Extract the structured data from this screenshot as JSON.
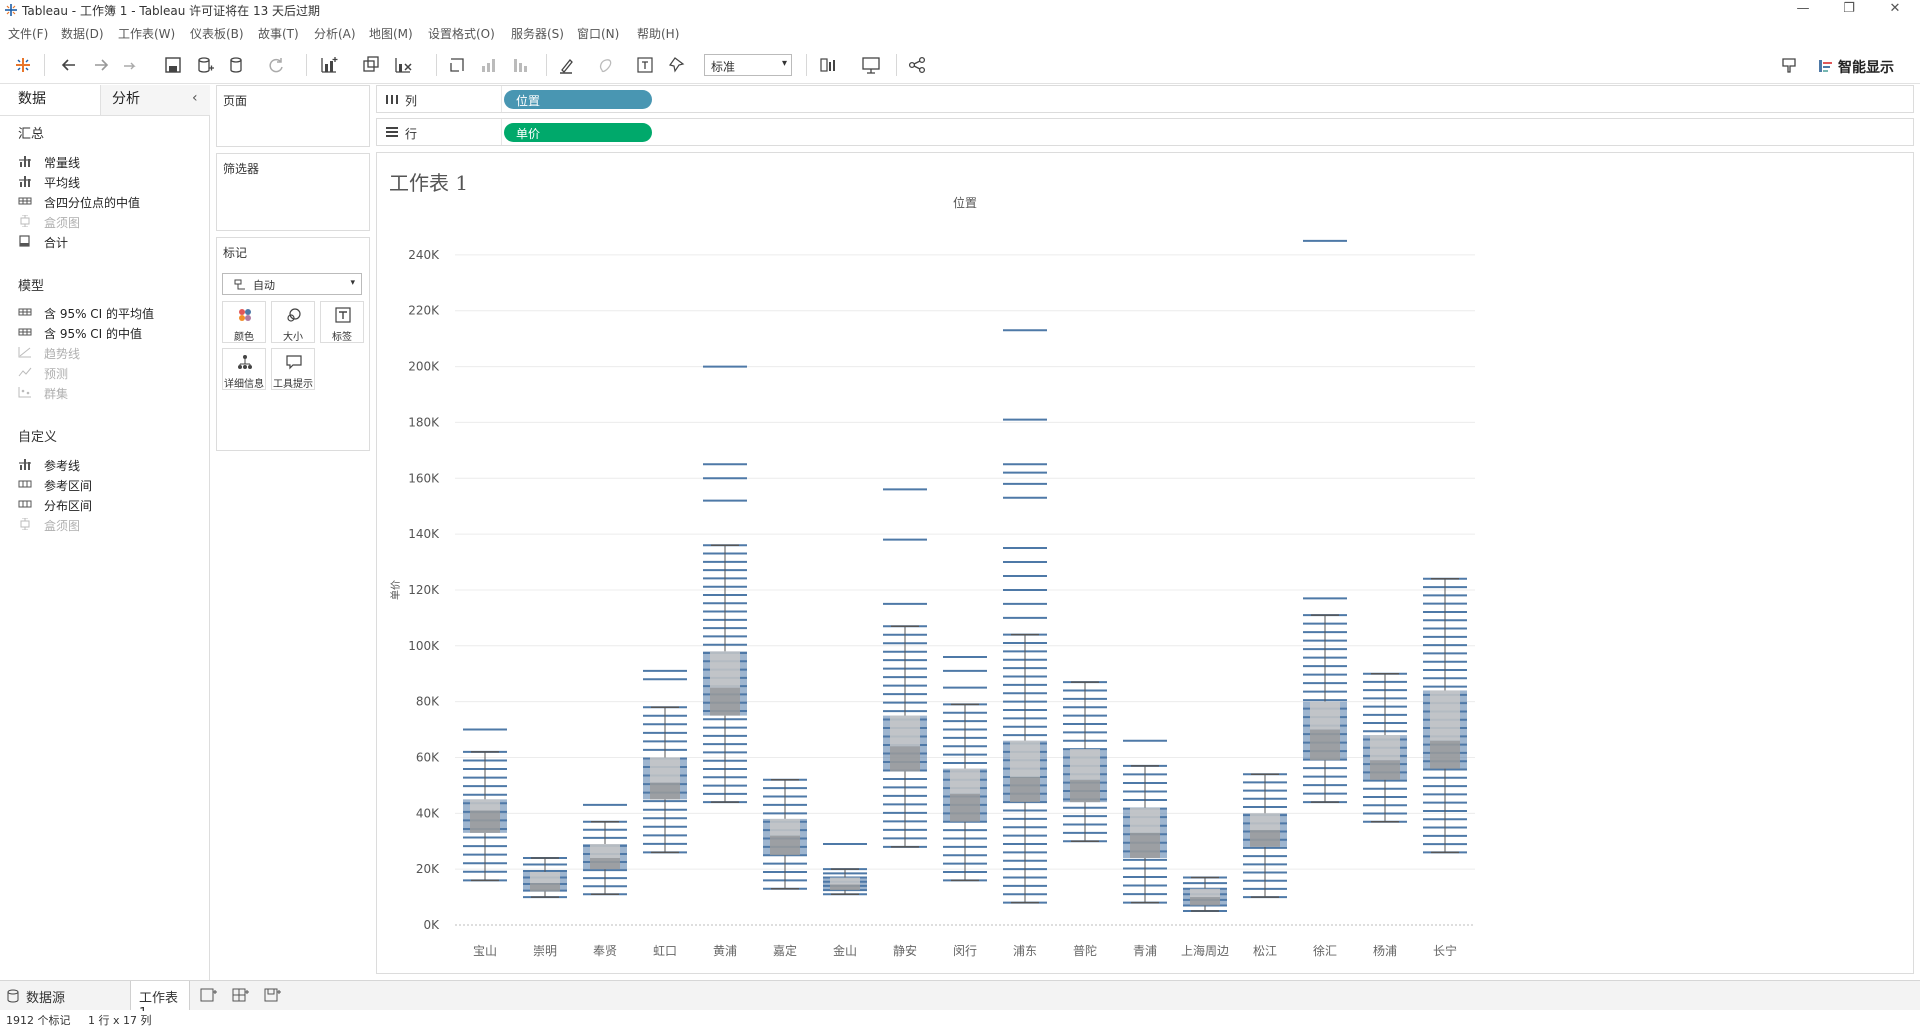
{
  "window": {
    "title": "Tableau - 工作簿 1 - Tableau 许可证将在 13 天后过期",
    "minimize": "—",
    "maximize": "❐",
    "close": "✕"
  },
  "menu": [
    "文件(F)",
    "数据(D)",
    "工作表(W)",
    "仪表板(B)",
    "故事(T)",
    "分析(A)",
    "地图(M)",
    "设置格式(O)",
    "服务器(S)",
    "窗口(N)",
    "帮助(H)"
  ],
  "toolbar": {
    "fit_value": "标准",
    "show_me_label": "智能显示"
  },
  "left_panel": {
    "tab_data": "数据",
    "tab_analysis": "分析",
    "sections": [
      {
        "title": "汇总",
        "items": [
          {
            "label": "常量线",
            "disabled": false,
            "icon": "constant-line-icon"
          },
          {
            "label": "平均线",
            "disabled": false,
            "icon": "average-line-icon"
          },
          {
            "label": "含四分位点的中值",
            "disabled": false,
            "icon": "median-quartiles-icon"
          },
          {
            "label": "盒须图",
            "disabled": true,
            "icon": "box-plot-icon"
          },
          {
            "label": "合计",
            "disabled": false,
            "icon": "totals-icon"
          }
        ]
      },
      {
        "title": "模型",
        "items": [
          {
            "label": "含 95% CI 的平均值",
            "disabled": false,
            "icon": "average-ci-icon"
          },
          {
            "label": "含 95% CI 的中值",
            "disabled": false,
            "icon": "median-ci-icon"
          },
          {
            "label": "趋势线",
            "disabled": true,
            "icon": "trend-line-icon"
          },
          {
            "label": "预测",
            "disabled": true,
            "icon": "forecast-icon"
          },
          {
            "label": "群集",
            "disabled": true,
            "icon": "cluster-icon"
          }
        ]
      },
      {
        "title": "自定义",
        "items": [
          {
            "label": "参考线",
            "disabled": false,
            "icon": "reference-line-icon"
          },
          {
            "label": "参考区间",
            "disabled": false,
            "icon": "reference-band-icon"
          },
          {
            "label": "分布区间",
            "disabled": false,
            "icon": "distribution-band-icon"
          },
          {
            "label": "盒须图",
            "disabled": true,
            "icon": "box-plot-icon"
          }
        ]
      }
    ]
  },
  "shelves": {
    "pages_title": "页面",
    "filters_title": "筛选器",
    "columns_label": "列",
    "columns_pill": "位置",
    "columns_pill_color": "#4996b2",
    "rows_label": "行",
    "rows_pill": "单价",
    "rows_pill_color": "#00a96b"
  },
  "marks": {
    "title": "标记",
    "type": "自动",
    "buttons": [
      "颜色",
      "大小",
      "标签",
      "详细信息",
      "工具提示"
    ]
  },
  "sheet": {
    "title": "工作表 1"
  },
  "chart_data": {
    "type": "box-plot",
    "header": "位置",
    "ylabel": "单价",
    "ylim": [
      0,
      255000
    ],
    "yticks": [
      0,
      20000,
      40000,
      60000,
      80000,
      100000,
      120000,
      140000,
      160000,
      180000,
      200000,
      220000,
      240000
    ],
    "ytick_labels": [
      "0K",
      "20K",
      "40K",
      "60K",
      "80K",
      "100K",
      "120K",
      "140K",
      "160K",
      "180K",
      "200K",
      "220K",
      "240K"
    ],
    "grid": true,
    "mark_color": "#4e79a7",
    "categories": [
      "宝山",
      "崇明",
      "奉贤",
      "虹口",
      "黄浦",
      "嘉定",
      "金山",
      "静安",
      "闵行",
      "浦东",
      "普陀",
      "青浦",
      "上海周边",
      "松江",
      "徐汇",
      "杨浦",
      "长宁"
    ],
    "boxes": [
      {
        "min": 16000,
        "q1": 33000,
        "median": 41000,
        "q3": 45000,
        "max": 62000
      },
      {
        "min": 10000,
        "q1": 12000,
        "median": 15000,
        "q3": 19000,
        "max": 24000
      },
      {
        "min": 11000,
        "q1": 20000,
        "median": 24000,
        "q3": 29000,
        "max": 37000
      },
      {
        "min": 26000,
        "q1": 45000,
        "median": 51000,
        "q3": 60000,
        "max": 78000
      },
      {
        "min": 44000,
        "q1": 75000,
        "median": 85000,
        "q3": 98000,
        "max": 136000
      },
      {
        "min": 13000,
        "q1": 25000,
        "median": 32000,
        "q3": 38000,
        "max": 52000
      },
      {
        "min": 11000,
        "q1": 12500,
        "median": 14500,
        "q3": 17000,
        "max": 20000
      },
      {
        "min": 28000,
        "q1": 55000,
        "median": 64000,
        "q3": 75000,
        "max": 107000
      },
      {
        "min": 16000,
        "q1": 37000,
        "median": 47000,
        "q3": 56000,
        "max": 79000
      },
      {
        "min": 8000,
        "q1": 44000,
        "median": 53000,
        "q3": 66000,
        "max": 104000
      },
      {
        "min": 30000,
        "q1": 44000,
        "median": 52000,
        "q3": 63000,
        "max": 87000
      },
      {
        "min": 8000,
        "q1": 24000,
        "median": 33000,
        "q3": 42000,
        "max": 57000
      },
      {
        "min": 5000,
        "q1": 7000,
        "median": 10000,
        "q3": 13000,
        "max": 17000
      },
      {
        "min": 10000,
        "q1": 28000,
        "median": 34000,
        "q3": 40000,
        "max": 54000
      },
      {
        "min": 44000,
        "q1": 59000,
        "median": 70000,
        "q3": 80000,
        "max": 111000
      },
      {
        "min": 37000,
        "q1": 52000,
        "median": 59000,
        "q3": 68000,
        "max": 90000
      },
      {
        "min": 26000,
        "q1": 56000,
        "median": 66000,
        "q3": 84000,
        "max": 124000
      }
    ],
    "outliers": [
      [
        70000
      ],
      [],
      [
        43000
      ],
      [
        88000,
        91000
      ],
      [
        152000,
        160000,
        165000,
        200000
      ],
      [],
      [
        29000
      ],
      [
        115000,
        138000,
        156000
      ],
      [
        85000,
        91000,
        96000
      ],
      [
        110000,
        115000,
        120000,
        125000,
        130000,
        135000,
        153000,
        158000,
        162000,
        165000,
        181000,
        213000
      ],
      [],
      [
        66000
      ],
      [],
      [],
      [
        117000,
        245000
      ],
      [],
      []
    ]
  },
  "sheet_tabs": {
    "datasource": "数据源",
    "sheet1": "工作表 1"
  },
  "status": {
    "marks_count": "1912 个标记",
    "dims": "1 行 x 17 列"
  }
}
